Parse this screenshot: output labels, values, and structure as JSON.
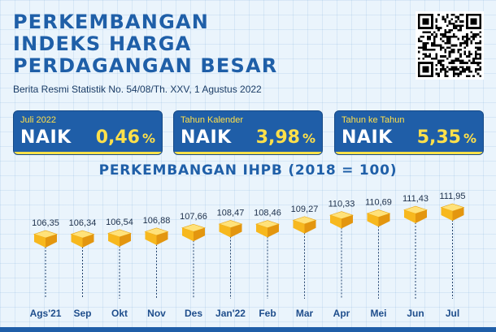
{
  "header": {
    "title_lines": [
      "PERKEMBANGAN",
      "INDEKS HARGA",
      "PERDAGANGAN BESAR"
    ],
    "subtitle": "Berita Resmi Statistik No. 54/08/Th. XXV, 1 Agustus 2022"
  },
  "qr": {
    "icon": "qr-code-icon"
  },
  "cards": [
    {
      "label": "Juli 2022",
      "status": "NAIK",
      "value": "0,46",
      "unit": "%"
    },
    {
      "label": "Tahun Kalender",
      "status": "NAIK",
      "value": "3,98",
      "unit": "%"
    },
    {
      "label": "Tahun ke Tahun",
      "status": "NAIK",
      "value": "5,35",
      "unit": "%"
    }
  ],
  "colors": {
    "primary_blue": "#1f5ea8",
    "accent_yellow": "#ffe04a",
    "cube_top": "#ffe27a",
    "cube_left": "#f7b81e",
    "cube_right": "#e3960f",
    "background": "#eaf4fc"
  },
  "chart_data": {
    "type": "line",
    "title": "PERKEMBANGAN IHPB (2018 = 100)",
    "categories": [
      "Ags'21",
      "Sep",
      "Okt",
      "Nov",
      "Des",
      "Jan'22",
      "Feb",
      "Mar",
      "Apr",
      "Mei",
      "Jun",
      "Jul"
    ],
    "value_labels": [
      "106,35",
      "106,34",
      "106,54",
      "106,88",
      "107,66",
      "108,47",
      "108,46",
      "109,27",
      "110,33",
      "110,69",
      "111,43",
      "111,95"
    ],
    "values": [
      106.35,
      106.34,
      106.54,
      106.88,
      107.66,
      108.47,
      108.46,
      109.27,
      110.33,
      110.69,
      111.43,
      111.95
    ],
    "marker": "cube-icon",
    "grid": false
  }
}
